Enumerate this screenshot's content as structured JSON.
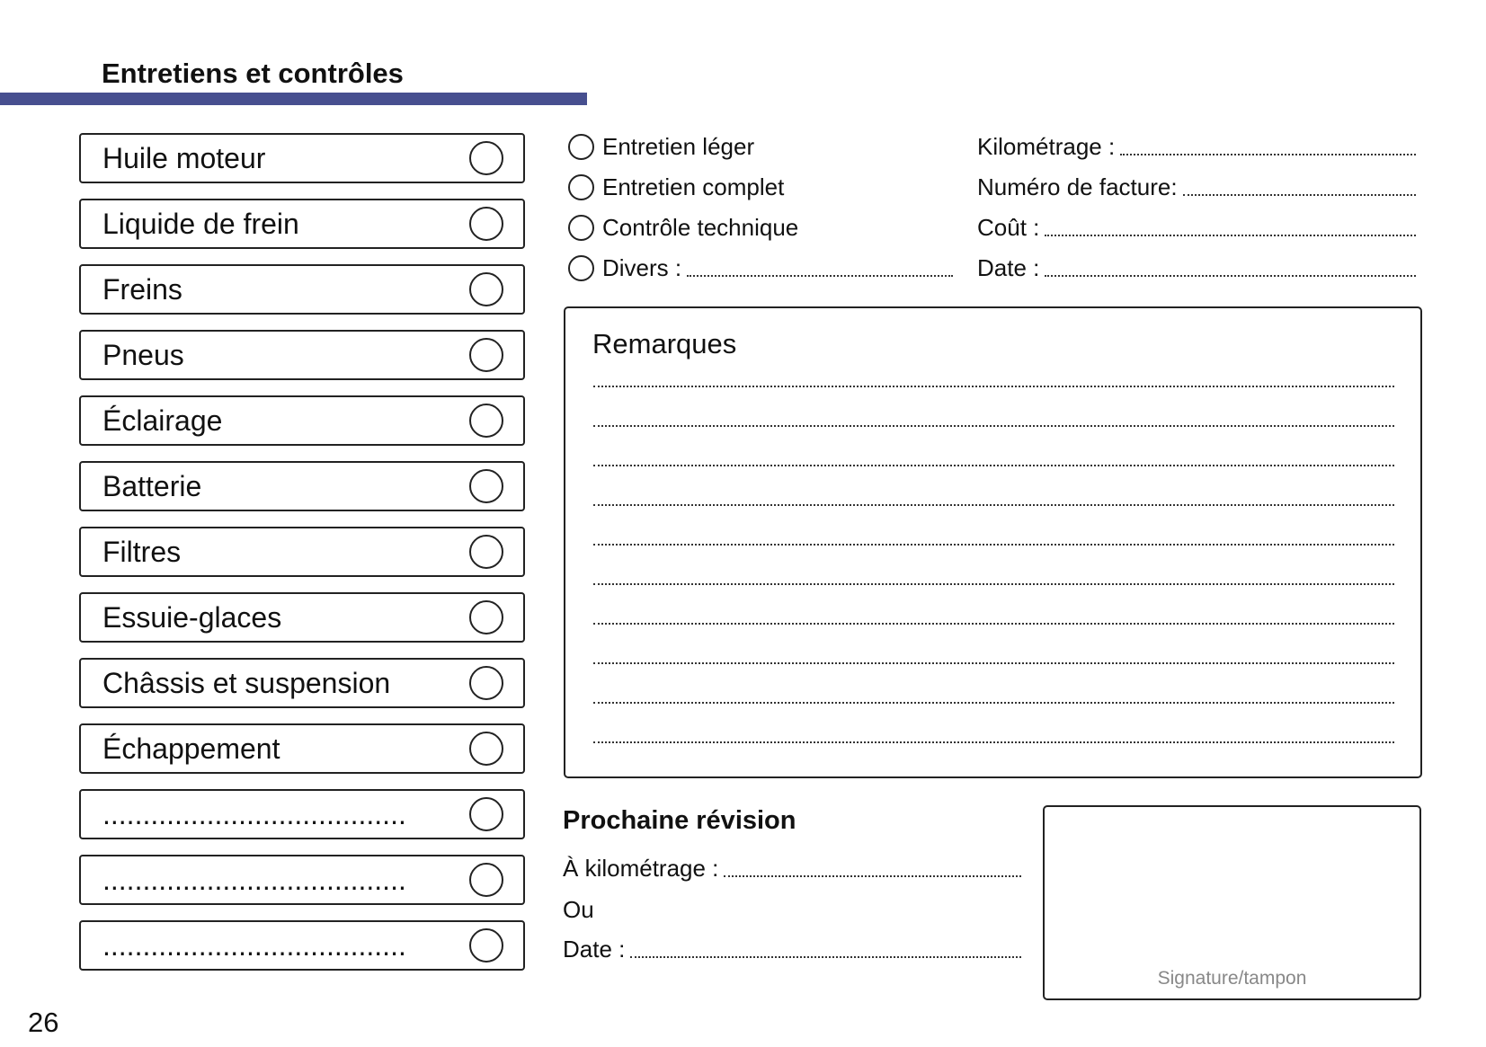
{
  "header": {
    "title": "Entretiens et contrôles",
    "accent_color": "#474f8f"
  },
  "checklist": [
    {
      "label": "Huile moteur",
      "checked": false
    },
    {
      "label": "Liquide de frein",
      "checked": false
    },
    {
      "label": "Freins",
      "checked": false
    },
    {
      "label": "Pneus",
      "checked": false
    },
    {
      "label": "Éclairage",
      "checked": false
    },
    {
      "label": "Batterie",
      "checked": false
    },
    {
      "label": "Filtres",
      "checked": false
    },
    {
      "label": "Essuie-glaces",
      "checked": false
    },
    {
      "label": "Châssis et suspension",
      "checked": false
    },
    {
      "label": "Échappement",
      "checked": false
    },
    {
      "label": "......................................",
      "checked": false
    },
    {
      "label": "......................................",
      "checked": false
    },
    {
      "label": "......................................",
      "checked": false
    }
  ],
  "service_type": [
    {
      "label": "Entretien léger"
    },
    {
      "label": "Entretien complet"
    },
    {
      "label": "Contrôle technique"
    },
    {
      "label": "Divers :"
    }
  ],
  "fields": [
    {
      "label": "Kilométrage :"
    },
    {
      "label": "Numéro de facture:"
    },
    {
      "label": "Coût :"
    },
    {
      "label": "Date :"
    }
  ],
  "remarks": {
    "title": "Remarques"
  },
  "next_service": {
    "title": "Prochaine révision",
    "km_label": "À kilométrage :",
    "or_label": "Ou",
    "date_label": "Date :"
  },
  "signature": {
    "label": "Signature/tampon"
  },
  "page_number": "26"
}
